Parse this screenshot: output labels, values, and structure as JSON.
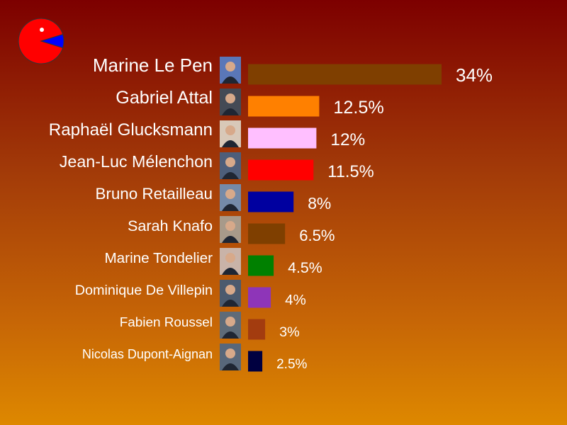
{
  "logo": {
    "name": "pacman-pie-logo-icon",
    "colors": {
      "main": "#ff0000",
      "slice": "#0000ff",
      "eye": "#ffffff"
    }
  },
  "chart_data": {
    "type": "bar",
    "orientation": "horizontal",
    "categories": [
      "Marine Le Pen",
      "Gabriel Attal",
      "Raphaël Glucksmann",
      "Jean-Luc Mélenchon",
      "Bruno Retailleau",
      "Sarah Knafo",
      "Marine Tondelier",
      "Dominique De Villepin",
      "Fabien Roussel",
      "Nicolas Dupont-Aignan"
    ],
    "values": [
      34,
      12.5,
      12,
      11.5,
      8,
      6.5,
      4.5,
      4,
      3,
      2.5
    ],
    "value_labels": [
      "34%",
      "12.5%",
      "12%",
      "11.5%",
      "8%",
      "6.5%",
      "4.5%",
      "4%",
      "3%",
      "2.5%"
    ],
    "colors": [
      "#7f3f00",
      "#ff8000",
      "#ffbfff",
      "#ff0000",
      "#0000a0",
      "#7f3f00",
      "#008000",
      "#8e35b8",
      "#a33c0f",
      "#000040"
    ],
    "portrait_colors": [
      "#5a77b8",
      "#444a55",
      "#d8c8b8",
      "#4d5e7a",
      "#758aa8",
      "#a89a8a",
      "#c9b3a8",
      "#4b5a6e",
      "#5e6b78",
      "#58677a"
    ],
    "title": "",
    "xlabel": "",
    "ylabel": "",
    "xlim": [
      0,
      34
    ]
  }
}
